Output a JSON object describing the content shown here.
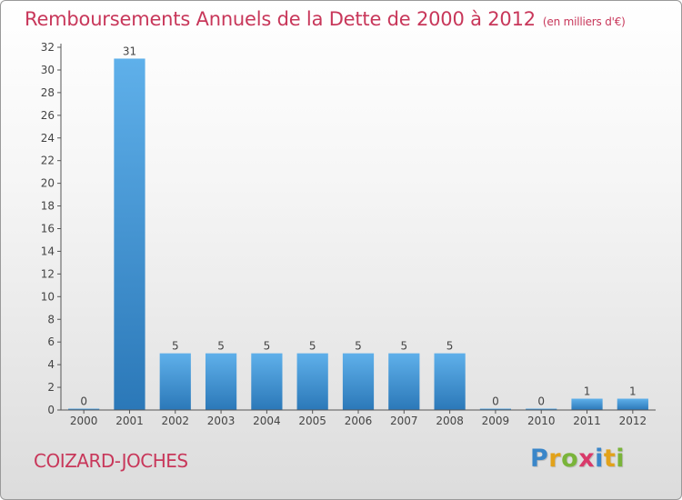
{
  "header": {
    "title": "Remboursements Annuels de la Dette de 2000 à 2012",
    "unit": "(en milliers d'€)"
  },
  "footer": {
    "commune": "COIZARD-JOCHES",
    "logo_letters": [
      "P",
      "r",
      "o",
      "x",
      "i",
      "t",
      "i"
    ],
    "logo_colors": [
      "#3a86c9",
      "#e2a21a",
      "#7ab43a",
      "#d93a6a",
      "#3a86c9",
      "#e2a21a",
      "#7ab43a"
    ]
  },
  "colors": {
    "bar_light": "#5fb0ea",
    "bar_dark": "#2b78b8",
    "axis": "#555555"
  },
  "chart_data": {
    "type": "bar",
    "categories": [
      "2000",
      "2001",
      "2002",
      "2003",
      "2004",
      "2005",
      "2006",
      "2007",
      "2008",
      "2009",
      "2010",
      "2011",
      "2012"
    ],
    "values": [
      0,
      31,
      5,
      5,
      5,
      5,
      5,
      5,
      5,
      0,
      0,
      1,
      1
    ],
    "data_labels": [
      "0",
      "31",
      "5",
      "5",
      "5",
      "5",
      "5",
      "5",
      "5",
      "0",
      "0",
      "1",
      "1"
    ],
    "ylim": [
      0,
      32
    ],
    "yticks": [
      0,
      2,
      4,
      6,
      8,
      10,
      12,
      14,
      16,
      18,
      20,
      22,
      24,
      26,
      28,
      30,
      32
    ],
    "grid": false
  }
}
